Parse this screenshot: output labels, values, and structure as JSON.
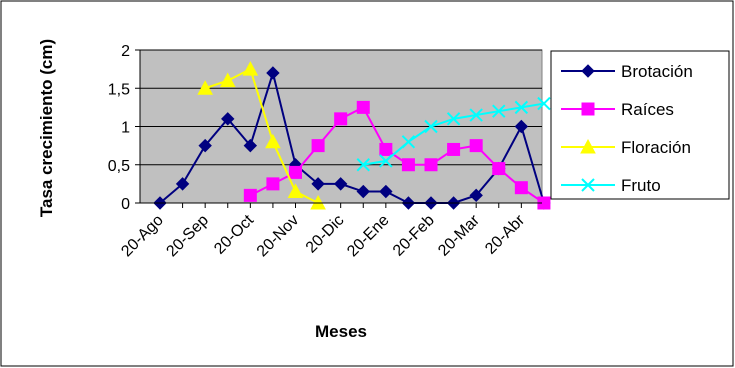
{
  "chart_data": {
    "type": "line",
    "ylabel": "Tasa crecimiento (cm)",
    "xlabel": "Meses",
    "ylim": [
      0,
      2
    ],
    "y_ticks": [
      "0",
      "0,5",
      "1",
      "1,5",
      "2"
    ],
    "y_tick_values": [
      0,
      0.5,
      1,
      1.5,
      2
    ],
    "x_points": 18,
    "x_tick_labels": [
      {
        "label": "20-Ago",
        "index": 0
      },
      {
        "label": "20-Sep",
        "index": 2
      },
      {
        "label": "20-Oct",
        "index": 4
      },
      {
        "label": "20-Nov",
        "index": 6
      },
      {
        "label": "20-Dic",
        "index": 8
      },
      {
        "label": "20-Ene",
        "index": 10
      },
      {
        "label": "20-Feb",
        "index": 12
      },
      {
        "label": "20-Mar",
        "index": 14
      },
      {
        "label": "20-Abr",
        "index": 16
      }
    ],
    "plot_background": "#c0c0c0",
    "grid": true,
    "legend_position": "right",
    "series": [
      {
        "name": "Brotación",
        "color": "#000080",
        "marker": "diamond",
        "values": [
          0,
          0.25,
          0.75,
          1.1,
          0.75,
          1.7,
          0.5,
          0.25,
          0.25,
          0.15,
          0.15,
          0,
          0,
          0,
          0.1,
          0.45,
          1.0,
          0
        ]
      },
      {
        "name": "Raíces",
        "color": "#ff00ff",
        "marker": "square",
        "values": [
          null,
          null,
          null,
          null,
          0.1,
          0.25,
          0.4,
          0.75,
          1.1,
          1.25,
          0.7,
          0.5,
          0.5,
          0.7,
          0.75,
          0.45,
          0.2,
          0
        ]
      },
      {
        "name": "Floración",
        "color": "#ffff00",
        "marker": "triangle",
        "values": [
          null,
          null,
          1.5,
          1.6,
          1.75,
          0.8,
          0.15,
          0,
          null,
          null,
          null,
          null,
          null,
          null,
          null,
          null,
          null,
          null
        ]
      },
      {
        "name": "Fruto",
        "color": "#00ffff",
        "marker": "x",
        "values": [
          null,
          null,
          null,
          null,
          null,
          null,
          null,
          null,
          null,
          0.5,
          0.55,
          0.8,
          1.0,
          1.1,
          1.15,
          1.2,
          1.25,
          1.3
        ]
      }
    ]
  }
}
